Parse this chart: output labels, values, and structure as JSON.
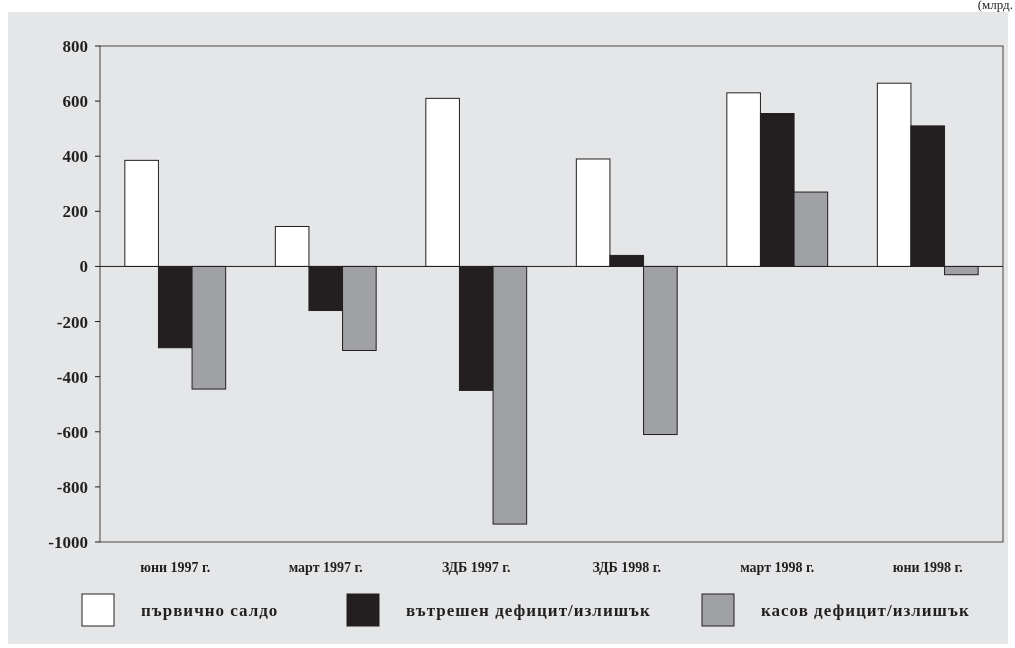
{
  "chart_data": {
    "type": "bar",
    "categories": [
      "юни 1997 г.",
      "март 1997 г.",
      "ЗДБ 1997 г.",
      "ЗДБ 1998 г.",
      "март 1998 г.",
      "юни 1998 г."
    ],
    "series": [
      {
        "name": "първично салдо",
        "color": "#ffffff",
        "values": [
          385,
          145,
          610,
          390,
          630,
          665
        ]
      },
      {
        "name": "вътрешен дефицит/излишък",
        "color": "#231f20",
        "values": [
          -295,
          -160,
          -450,
          40,
          555,
          510
        ]
      },
      {
        "name": "касов дефицит/излишък",
        "color": "#a0a1a5",
        "values": [
          -445,
          -305,
          -935,
          -610,
          270,
          -30
        ]
      }
    ],
    "ylim": [
      -1000,
      800
    ],
    "yticks": [
      -1000,
      -800,
      -600,
      -400,
      -200,
      0,
      200,
      400,
      600,
      800
    ],
    "legend": "bottom",
    "annotations": [
      "(млрд."
    ]
  }
}
